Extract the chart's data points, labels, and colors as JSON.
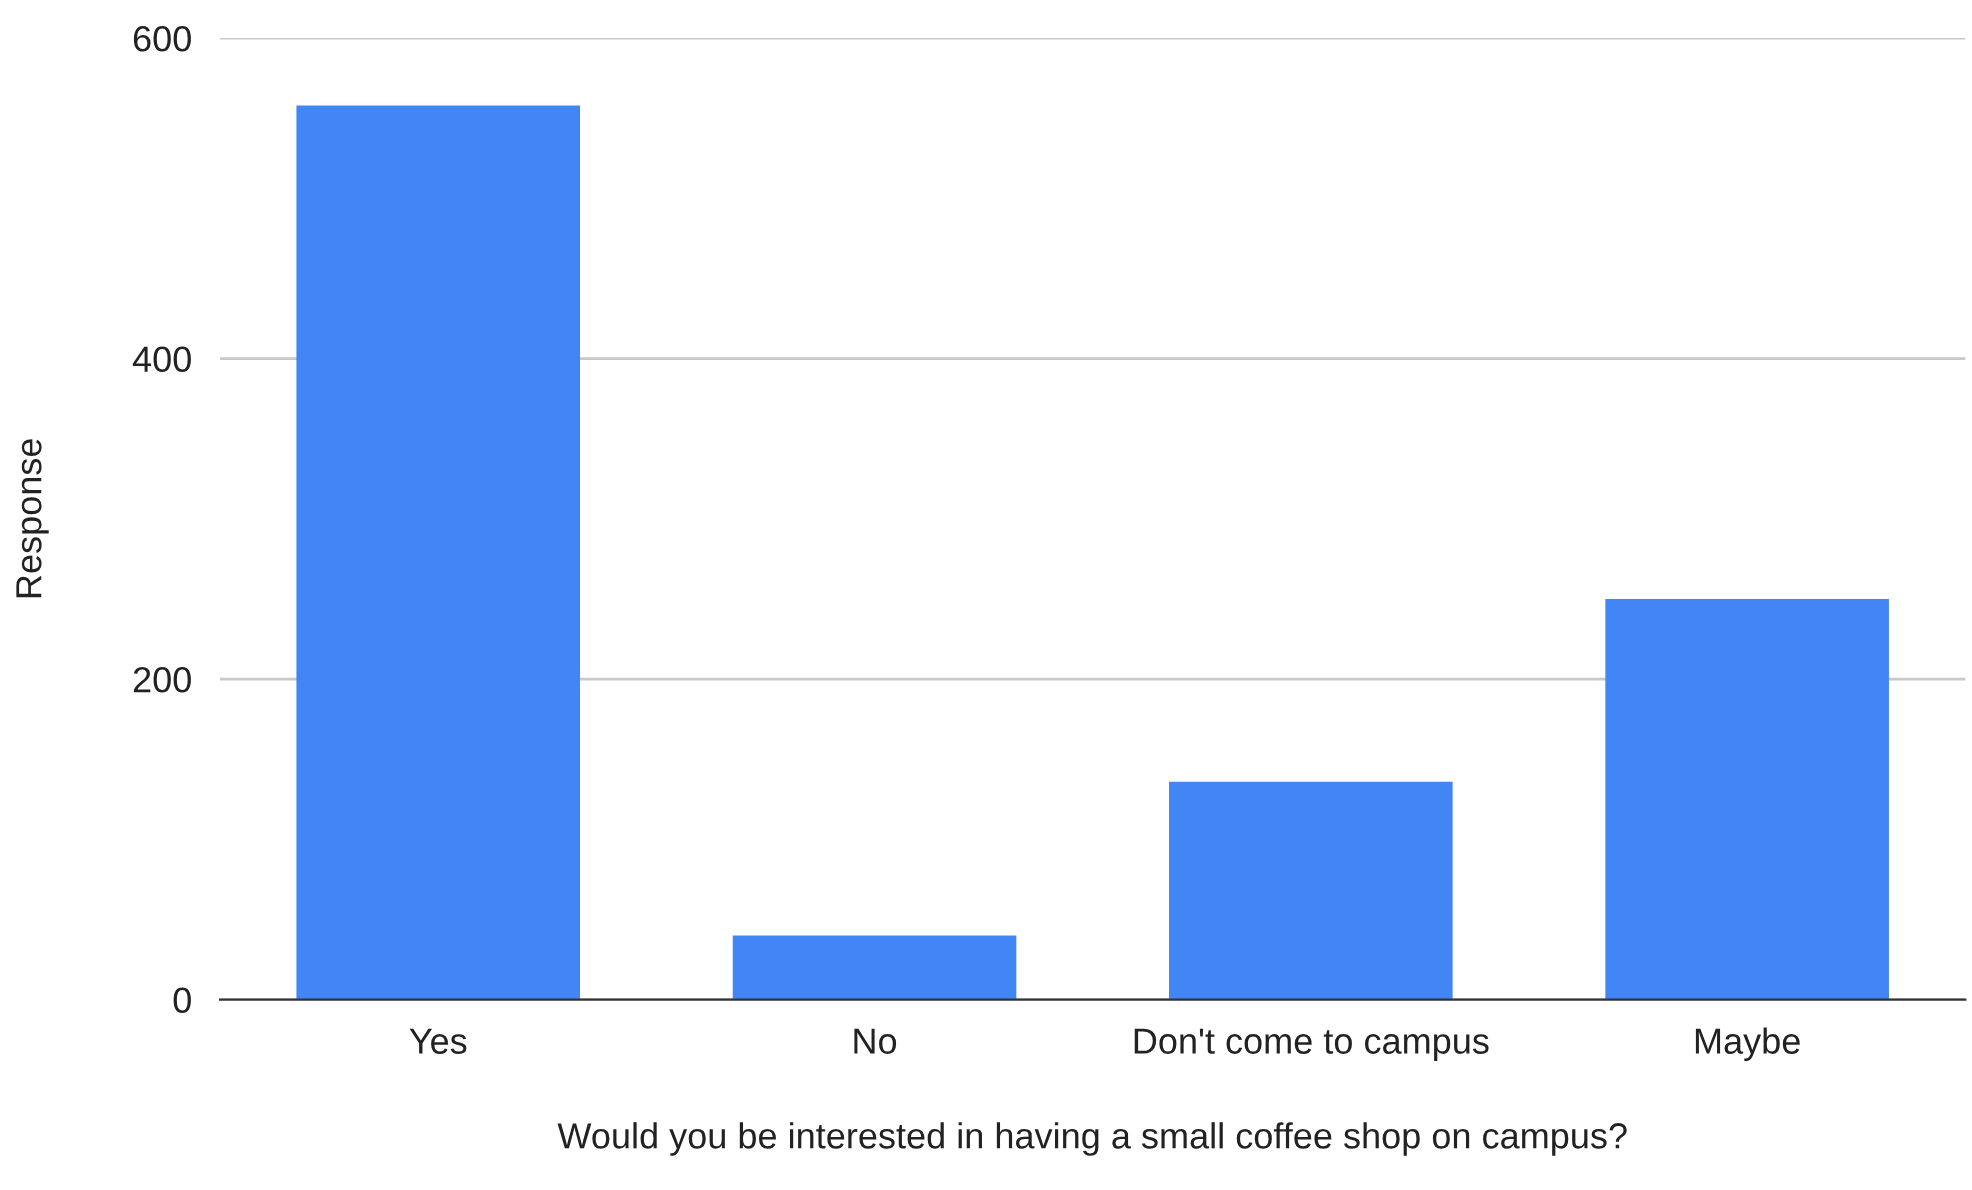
{
  "chart_data": {
    "type": "bar",
    "xlabel": "Would you be interested in having a small coffee shop on campus?",
    "ylabel": "Response",
    "categories": [
      "Yes",
      "No",
      "Don't come to campus",
      "Maybe"
    ],
    "values": [
      558,
      40,
      136,
      250
    ],
    "color": "#4285f4",
    "ylim": [
      0,
      600
    ],
    "yticks": [
      0,
      200,
      400,
      600
    ],
    "grid": "y",
    "legend": false
  }
}
